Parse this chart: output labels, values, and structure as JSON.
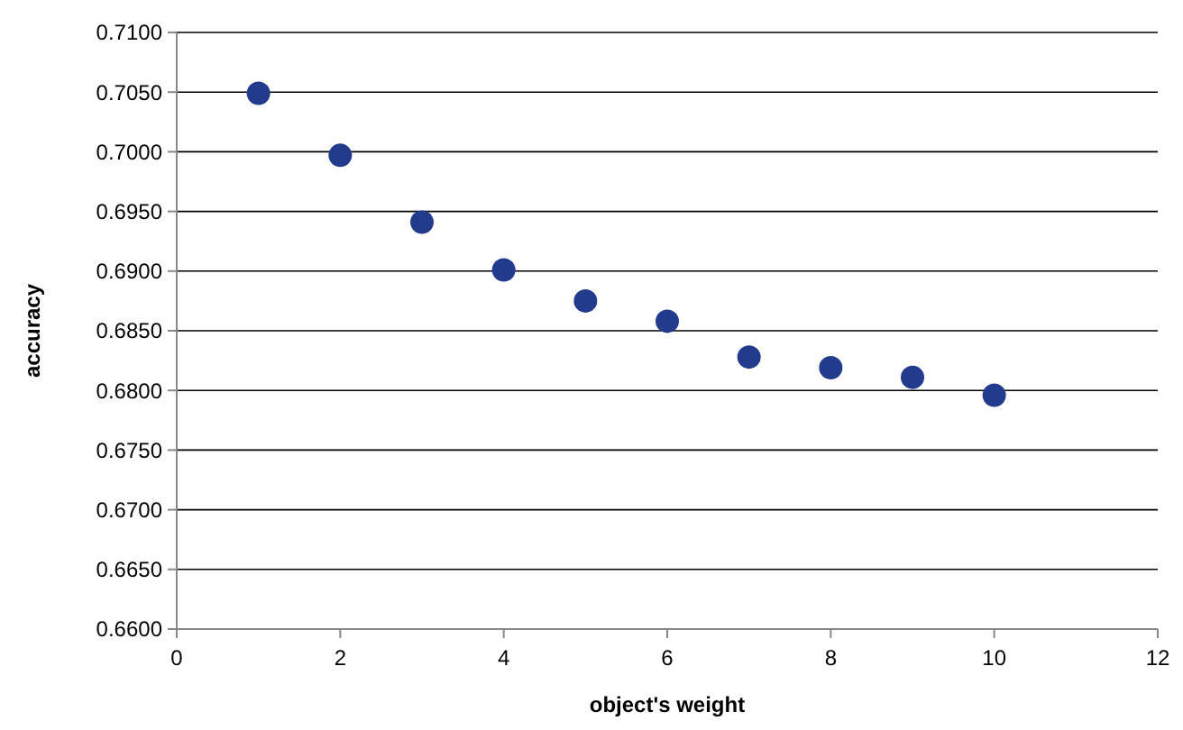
{
  "chart_data": {
    "type": "scatter",
    "xlabel": "object's weight",
    "ylabel": "accuracy",
    "x": [
      1,
      2,
      3,
      4,
      5,
      6,
      7,
      8,
      9,
      10
    ],
    "series": [
      {
        "color": "#233b8c",
        "values": [
          0.7049,
          0.6997,
          0.6941,
          0.6901,
          0.6875,
          0.6858,
          0.6828,
          0.6819,
          0.6811,
          0.6796
        ]
      }
    ],
    "xlim": [
      0,
      12
    ],
    "xticks": [
      0,
      2,
      4,
      6,
      8,
      10,
      12
    ],
    "ylim": [
      0.66,
      0.71
    ],
    "yticks": [
      {
        "value": 0.66,
        "label": "0.6600"
      },
      {
        "value": 0.665,
        "label": "0.6650"
      },
      {
        "value": 0.67,
        "label": "0.6700"
      },
      {
        "value": 0.675,
        "label": "0.6750"
      },
      {
        "value": 0.68,
        "label": "0.6800"
      },
      {
        "value": 0.685,
        "label": "0.6850"
      },
      {
        "value": 0.69,
        "label": "0.6900"
      },
      {
        "value": 0.695,
        "label": "0.6950"
      },
      {
        "value": 0.7,
        "label": "0.7000"
      },
      {
        "value": 0.705,
        "label": "0.7050"
      },
      {
        "value": 0.71,
        "label": "0.7100"
      }
    ],
    "grid": "y",
    "marker": "circle"
  }
}
